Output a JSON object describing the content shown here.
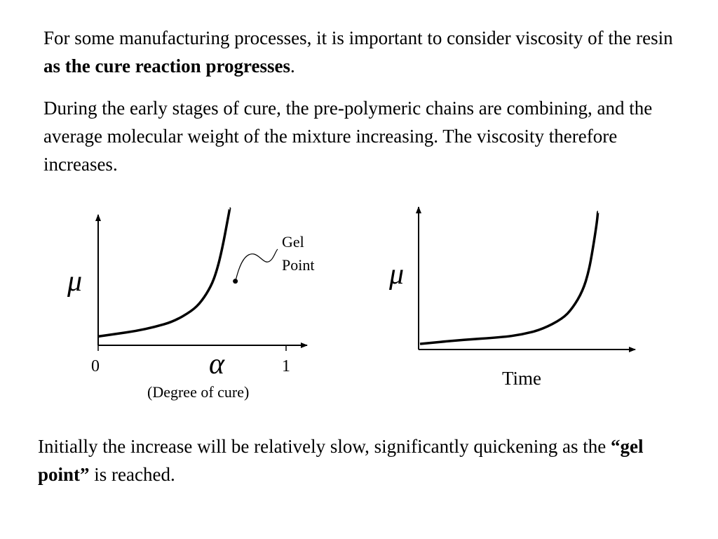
{
  "slide": {
    "intro": {
      "text_before": "For some manufacturing processes, it is important to consider viscosity of the resin ",
      "emphasis": "as the cure reaction progresses",
      "text_after": "."
    },
    "paragraph2": "During the early stages of cure, the pre-polymeric chains are combining, and the average molecular weight of the mixture increasing. The viscosity therefore increases.",
    "conclusion": {
      "text_before": "Initially the increase will be relatively slow, significantly quickening as the ",
      "emphasis": "“gel point”",
      "text_after": " is reached."
    }
  },
  "chart_data": [
    {
      "type": "line",
      "ylabel": "μ",
      "xlabel": "α",
      "xlabel_note": "(Degree of cure)",
      "x_tick_labels": [
        "0",
        "1"
      ],
      "xlim": [
        0,
        1
      ],
      "annotation": "Gel Point",
      "series": [
        {
          "x": [
            0.0,
            0.1,
            0.2,
            0.3,
            0.4,
            0.5,
            0.55,
            0.6,
            0.63,
            0.66,
            0.69,
            0.7
          ],
          "y": [
            0.05,
            0.07,
            0.09,
            0.12,
            0.16,
            0.24,
            0.31,
            0.42,
            0.53,
            0.7,
            0.92,
            1.0
          ]
        }
      ],
      "gel_point": {
        "x": 0.73,
        "y": 0.46
      }
    },
    {
      "type": "line",
      "ylabel": "μ",
      "xlabel": "Time",
      "series": [
        {
          "x": [
            0.0,
            0.2,
            0.4,
            0.5,
            0.6,
            0.7,
            0.75,
            0.8,
            0.83,
            0.85,
            0.87,
            0.875
          ],
          "y": [
            0.0,
            0.03,
            0.05,
            0.07,
            0.11,
            0.19,
            0.27,
            0.4,
            0.55,
            0.72,
            0.92,
            1.0
          ]
        }
      ]
    }
  ]
}
